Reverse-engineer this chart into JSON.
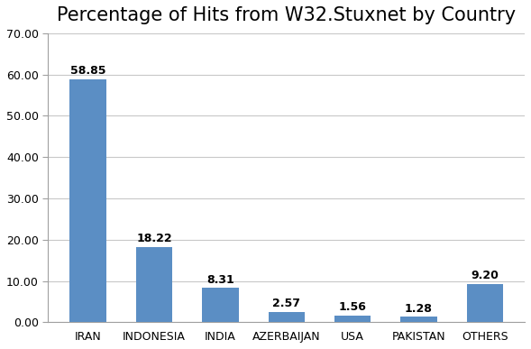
{
  "title": "Percentage of Hits from W32.Stuxnet by Country",
  "categories": [
    "IRAN",
    "INDONESIA",
    "INDIA",
    "AZERBAIJAN",
    "USA",
    "PAKISTAN",
    "OTHERS"
  ],
  "values": [
    58.85,
    18.22,
    8.31,
    2.57,
    1.56,
    1.28,
    9.2
  ],
  "bar_color": "#5b8ec4",
  "ylim": [
    0,
    70
  ],
  "yticks": [
    0.0,
    10.0,
    20.0,
    30.0,
    40.0,
    50.0,
    60.0,
    70.0
  ],
  "title_fontsize": 15,
  "label_fontsize": 9,
  "tick_fontsize": 9,
  "background_color": "#ffffff",
  "grid_color": "#c8c8c8",
  "spine_color": "#a0a0a0"
}
